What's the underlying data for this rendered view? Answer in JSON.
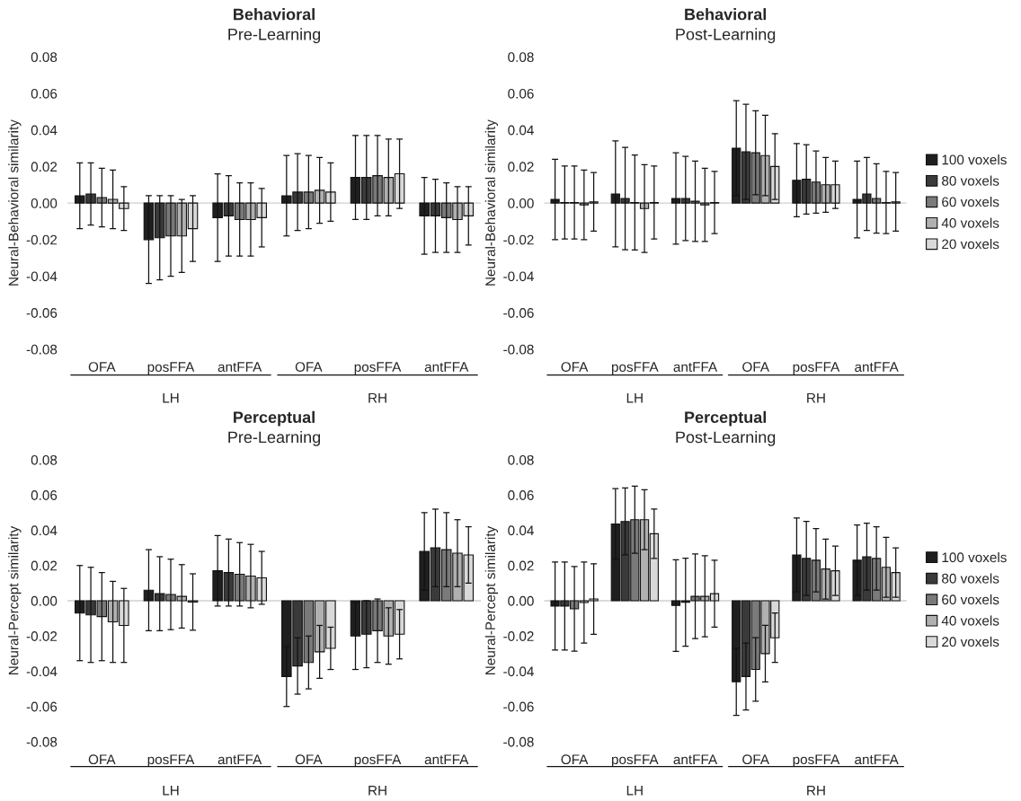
{
  "chart_data": [
    {
      "type": "bar",
      "title": "Behavioral",
      "subtitle": "Pre-Learning",
      "ylabel": "Neural-Behavioral similarity",
      "categories": [
        "OFA",
        "posFFA",
        "antFFA",
        "OFA",
        "posFFA",
        "antFFA"
      ],
      "annotations": [
        "LH",
        "RH"
      ],
      "ylim": [
        -0.08,
        0.08
      ],
      "yticks": [
        {
          "value": -0.08,
          "label": "-0.08"
        },
        {
          "value": -0.06,
          "label": "-0.06"
        },
        {
          "value": -0.04,
          "label": "-0.04"
        },
        {
          "value": -0.02,
          "label": "-0.02"
        },
        {
          "value": 0,
          "label": "0.00"
        },
        {
          "value": 0.02,
          "label": "0.02"
        },
        {
          "value": 0.04,
          "label": "0.04"
        },
        {
          "value": 0.06,
          "label": "0.06"
        },
        {
          "value": 0.08,
          "label": "0.08"
        }
      ],
      "ref_lines": [
        {
          "axis": "y",
          "value": 0,
          "color": "#d0d0d0"
        }
      ],
      "legend": false,
      "series": [
        {
          "color": "#1f1f1f",
          "values": [
            0.004,
            -0.02,
            -0.008,
            0.004,
            0.014,
            -0.007
          ],
          "errors": [
            0.018,
            0.024,
            0.024,
            0.022,
            0.023,
            0.021
          ]
        },
        {
          "color": "#3a3a3a",
          "values": [
            0.005,
            -0.019,
            -0.007,
            0.006,
            0.014,
            -0.007
          ],
          "errors": [
            0.017,
            0.023,
            0.022,
            0.021,
            0.023,
            0.02
          ]
        },
        {
          "color": "#7a7a7a",
          "values": [
            0.003,
            -0.018,
            -0.009,
            0.006,
            0.015,
            -0.008
          ],
          "errors": [
            0.016,
            0.022,
            0.02,
            0.02,
            0.022,
            0.019
          ]
        },
        {
          "color": "#b0b0b0",
          "values": [
            0.002,
            -0.018,
            -0.009,
            0.007,
            0.014,
            -0.009
          ],
          "errors": [
            0.016,
            0.02,
            0.02,
            0.018,
            0.021,
            0.018
          ]
        },
        {
          "color": "#d9d9d9",
          "values": [
            -0.003,
            -0.014,
            -0.008,
            0.006,
            0.016,
            -0.007
          ],
          "errors": [
            0.012,
            0.018,
            0.016,
            0.016,
            0.019,
            0.016
          ]
        }
      ]
    },
    {
      "type": "bar",
      "title": "Behavioral",
      "subtitle": "Post-Learning",
      "ylabel": "Neural-Behavioral similarity",
      "categories": [
        "OFA",
        "posFFA",
        "antFFA",
        "OFA",
        "posFFA",
        "antFFA"
      ],
      "annotations": [
        "LH",
        "RH"
      ],
      "ylim": [
        -0.08,
        0.08
      ],
      "yticks": [
        {
          "value": -0.08,
          "label": "-0.08"
        },
        {
          "value": -0.06,
          "label": "-0.06"
        },
        {
          "value": -0.04,
          "label": "-0.04"
        },
        {
          "value": -0.02,
          "label": "-0.02"
        },
        {
          "value": 0,
          "label": "0.00"
        },
        {
          "value": 0.02,
          "label": "0.02"
        },
        {
          "value": 0.04,
          "label": "0.04"
        },
        {
          "value": 0.06,
          "label": "0.06"
        },
        {
          "value": 0.08,
          "label": "0.08"
        }
      ],
      "ref_lines": [
        {
          "axis": "y",
          "value": 0,
          "color": "#d0d0d0"
        }
      ],
      "legend": "right",
      "series": [
        {
          "name": "100 voxels",
          "color": "#1f1f1f",
          "values": [
            0.002,
            0.005,
            0.0025,
            0.03,
            0.0125,
            0.002
          ],
          "errors": [
            0.022,
            0.029,
            0.025,
            0.026,
            0.02,
            0.021
          ]
        },
        {
          "name": "80 voxels",
          "color": "#3a3a3a",
          "values": [
            0.0003,
            0.0025,
            0.0025,
            0.028,
            0.013,
            0.005
          ],
          "errors": [
            0.02,
            0.028,
            0.023,
            0.026,
            0.019,
            0.02
          ]
        },
        {
          "name": "60 voxels",
          "color": "#7a7a7a",
          "values": [
            0.0003,
            0.0003,
            0.001,
            0.0275,
            0.0115,
            0.0025
          ],
          "errors": [
            0.02,
            0.026,
            0.022,
            0.023,
            0.017,
            0.019
          ]
        },
        {
          "name": "40 voxels",
          "color": "#b0b0b0",
          "values": [
            -0.001,
            -0.003,
            -0.001,
            0.026,
            0.01,
            0.0003
          ],
          "errors": [
            0.019,
            0.024,
            0.02,
            0.022,
            0.015,
            0.017
          ]
        },
        {
          "name": "20 voxels",
          "color": "#d9d9d9",
          "values": [
            0.0007,
            0.0003,
            0.0003,
            0.02,
            0.01,
            0.0007
          ],
          "errors": [
            0.016,
            0.02,
            0.017,
            0.018,
            0.013,
            0.016
          ]
        }
      ]
    },
    {
      "type": "bar",
      "title": "Perceptual",
      "subtitle": "Pre-Learning",
      "ylabel": "Neural-Percept similarity",
      "categories": [
        "OFA",
        "posFFA",
        "antFFA",
        "OFA",
        "posFFA",
        "antFFA"
      ],
      "annotations": [
        "LH",
        "RH"
      ],
      "ylim": [
        -0.08,
        0.08
      ],
      "yticks": [
        {
          "value": -0.08,
          "label": "-0.08"
        },
        {
          "value": -0.06,
          "label": "-0.06"
        },
        {
          "value": -0.04,
          "label": "-0.04"
        },
        {
          "value": -0.02,
          "label": "-0.02"
        },
        {
          "value": 0,
          "label": "0.00"
        },
        {
          "value": 0.02,
          "label": "0.02"
        },
        {
          "value": 0.04,
          "label": "0.04"
        },
        {
          "value": 0.06,
          "label": "0.06"
        },
        {
          "value": 0.08,
          "label": "0.08"
        }
      ],
      "ref_lines": [
        {
          "axis": "y",
          "value": 0,
          "color": "#d0d0d0"
        }
      ],
      "legend": false,
      "series": [
        {
          "color": "#1f1f1f",
          "values": [
            -0.007,
            0.006,
            0.017,
            -0.043,
            -0.02,
            0.028
          ],
          "errors": [
            0.027,
            0.023,
            0.02,
            0.017,
            0.019,
            0.022
          ]
        },
        {
          "color": "#3a3a3a",
          "values": [
            -0.008,
            0.004,
            0.016,
            -0.037,
            -0.019,
            0.03
          ],
          "errors": [
            0.027,
            0.021,
            0.019,
            0.016,
            0.019,
            0.022
          ]
        },
        {
          "color": "#7a7a7a",
          "values": [
            -0.009,
            0.0036,
            0.015,
            -0.035,
            -0.017,
            0.029
          ],
          "errors": [
            0.025,
            0.02,
            0.018,
            0.015,
            0.018,
            0.021
          ]
        },
        {
          "color": "#b0b0b0",
          "values": [
            -0.012,
            0.0025,
            0.014,
            -0.029,
            -0.02,
            0.027
          ],
          "errors": [
            0.023,
            0.018,
            0.018,
            0.015,
            0.016,
            0.019
          ]
        },
        {
          "color": "#d9d9d9",
          "values": [
            -0.014,
            -0.0007,
            0.013,
            -0.027,
            -0.019,
            0.026
          ],
          "errors": [
            0.021,
            0.016,
            0.015,
            0.012,
            0.014,
            0.016
          ]
        }
      ]
    },
    {
      "type": "bar",
      "title": "Perceptual",
      "subtitle": "Post-Learning",
      "ylabel": "Neural-Percept similarity",
      "categories": [
        "OFA",
        "posFFA",
        "antFFA",
        "OFA",
        "posFFA",
        "antFFA"
      ],
      "annotations": [
        "LH",
        "RH"
      ],
      "ylim": [
        -0.08,
        0.08
      ],
      "yticks": [
        {
          "value": -0.08,
          "label": "-0.08"
        },
        {
          "value": -0.06,
          "label": "-0.06"
        },
        {
          "value": -0.04,
          "label": "-0.04"
        },
        {
          "value": -0.02,
          "label": "-0.02"
        },
        {
          "value": 0,
          "label": "0.00"
        },
        {
          "value": 0.02,
          "label": "0.02"
        },
        {
          "value": 0.04,
          "label": "0.04"
        },
        {
          "value": 0.06,
          "label": "0.06"
        },
        {
          "value": 0.08,
          "label": "0.08"
        }
      ],
      "ref_lines": [
        {
          "axis": "y",
          "value": 0,
          "color": "#d0d0d0"
        }
      ],
      "legend": "right",
      "series": [
        {
          "name": "100 voxels",
          "color": "#1f1f1f",
          "values": [
            -0.003,
            0.0436,
            -0.0027,
            -0.046,
            0.026,
            0.023
          ],
          "errors": [
            0.025,
            0.02,
            0.026,
            0.019,
            0.021,
            0.02
          ]
        },
        {
          "name": "80 voxels",
          "color": "#3a3a3a",
          "values": [
            -0.003,
            0.045,
            -0.0008,
            -0.043,
            0.024,
            0.025
          ],
          "errors": [
            0.025,
            0.019,
            0.025,
            0.019,
            0.021,
            0.019
          ]
        },
        {
          "name": "60 voxels",
          "color": "#7a7a7a",
          "values": [
            -0.0046,
            0.046,
            0.0025,
            -0.039,
            0.023,
            0.024
          ],
          "errors": [
            0.024,
            0.019,
            0.024,
            0.018,
            0.018,
            0.018
          ]
        },
        {
          "name": "40 voxels",
          "color": "#b0b0b0",
          "values": [
            -0.001,
            0.046,
            0.0025,
            -0.03,
            0.018,
            0.019
          ],
          "errors": [
            0.023,
            0.017,
            0.023,
            0.016,
            0.017,
            0.017
          ]
        },
        {
          "name": "20 voxels",
          "color": "#d9d9d9",
          "values": [
            0.001,
            0.038,
            0.004,
            -0.021,
            0.017,
            0.016
          ],
          "errors": [
            0.02,
            0.014,
            0.019,
            0.014,
            0.014,
            0.014
          ]
        }
      ]
    }
  ]
}
